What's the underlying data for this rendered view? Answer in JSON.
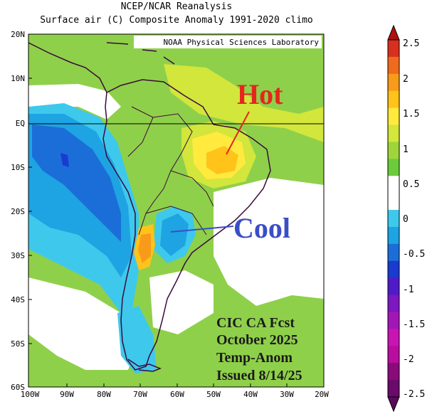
{
  "header": {
    "title": "NCEP/NCAR Reanalysis",
    "subtitle": "Surface air (C) Composite Anomaly 1991-2020 climo"
  },
  "credit": "NOAA Physical Sciences Laboratory",
  "annotations": {
    "hot": "Hot",
    "cool": "Cool",
    "forecast": [
      "CIC CA Fcst",
      "October 2025",
      "Temp-Anom",
      "Issued 8/14/25"
    ]
  },
  "axes": {
    "lat_ticks": [
      "20N",
      "10N",
      "EQ",
      "10S",
      "20S",
      "30S",
      "40S",
      "50S",
      "60S"
    ],
    "lon_ticks": [
      "100W",
      "90W",
      "80W",
      "70W",
      "60W",
      "50W",
      "40W",
      "30W",
      "20W"
    ]
  },
  "colorbar": {
    "labels": [
      "2.5",
      "2",
      "1.5",
      "1",
      "0.5",
      "0",
      "-0.5",
      "-1",
      "-1.5",
      "-2",
      "-2.5"
    ],
    "colors": [
      "#d7301f",
      "#ef6a1c",
      "#f89b1a",
      "#ffc31a",
      "#ffea3d",
      "#d2e63c",
      "#9fd53b",
      "#6ccb3a",
      "#ffffff",
      "#ffffff",
      "#3ec8ec",
      "#1ea3e3",
      "#1b6ed8",
      "#1a3ad0",
      "#4f1bc8",
      "#7d17c0",
      "#a316b6",
      "#c914b4",
      "#b80d9e",
      "#8a0a7a",
      "#6a0a6a"
    ]
  },
  "colors": {
    "hot_text": "#e5261f",
    "cool_text": "#3a4ec6",
    "forecast_text": "#1a1a1a"
  }
}
